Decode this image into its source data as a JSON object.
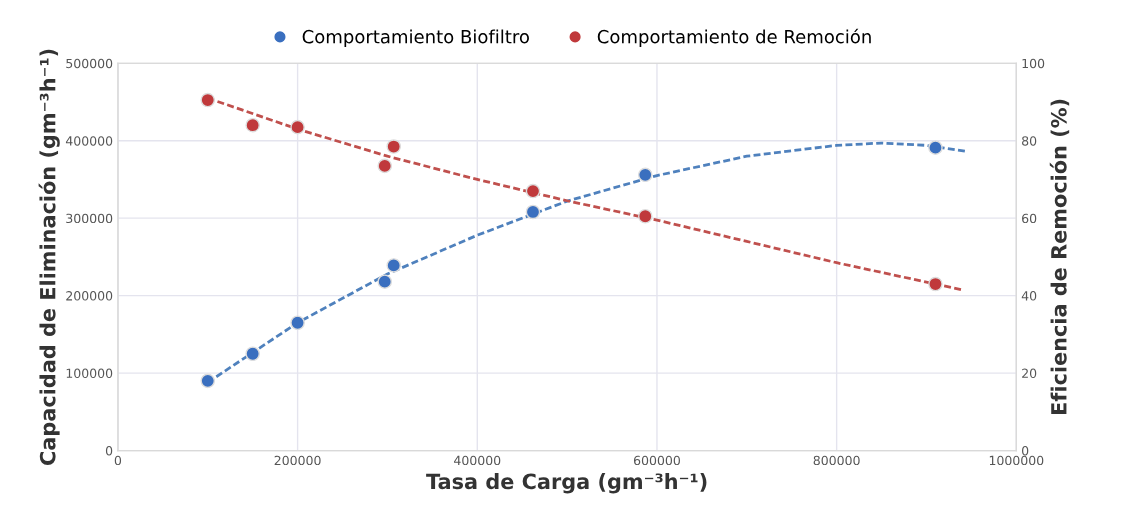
{
  "chart_data": {
    "type": "scatter",
    "xlabel": "Tasa de Carga (gm⁻³h⁻¹)",
    "ylabel": "Capacidad de Eliminación (gm⁻³h⁻¹)",
    "y2label": "Eficiencia de Remoción (%)",
    "xlim": [
      0,
      1000000
    ],
    "xticks": [
      0,
      200000,
      400000,
      600000,
      800000,
      1000000
    ],
    "ylim": [
      0,
      500000
    ],
    "yticks": [
      0,
      100000,
      200000,
      300000,
      400000,
      500000
    ],
    "y2lim": [
      0,
      100
    ],
    "y2ticks": [
      0,
      20,
      40,
      60,
      80,
      100
    ],
    "grid": true,
    "legend": "top",
    "marker": "circle",
    "series": [
      {
        "name": "Comportamiento Biofiltro",
        "color": "#3a6fbf",
        "x": [
          100000,
          150000,
          200000,
          297000,
          307000,
          462000,
          587000,
          910000
        ],
        "values": [
          90000,
          125000,
          165000,
          218000,
          239000,
          308000,
          356000,
          391000
        ]
      },
      {
        "name": "Comportamiento de Remoción",
        "axis": "y2",
        "color": "#c0393b",
        "x": [
          100000,
          150000,
          200000,
          297000,
          307000,
          462000,
          587000,
          910000
        ],
        "values": [
          90.5,
          84,
          83.5,
          73.5,
          78.5,
          67,
          60.5,
          43
        ]
      },
      {
        "type": "line",
        "line_style": "dashed",
        "marker": "none",
        "color": "#4f81bd",
        "x": [
          100000,
          200000,
          300000,
          400000,
          500000,
          600000,
          700000,
          800000,
          850000,
          900000,
          945000
        ],
        "values": [
          88000,
          165000,
          228000,
          278000,
          322000,
          355000,
          380000,
          394000,
          397000,
          394000,
          386000
        ]
      },
      {
        "type": "line",
        "line_style": "dashed",
        "marker": "none",
        "axis": "y2",
        "color": "#c0504d",
        "x": [
          100000,
          200000,
          300000,
          400000,
          500000,
          600000,
          700000,
          800000,
          900000,
          940000
        ],
        "values": [
          91,
          83,
          76,
          70,
          64.5,
          59.5,
          54,
          48.5,
          43.5,
          41.5
        ]
      }
    ]
  }
}
